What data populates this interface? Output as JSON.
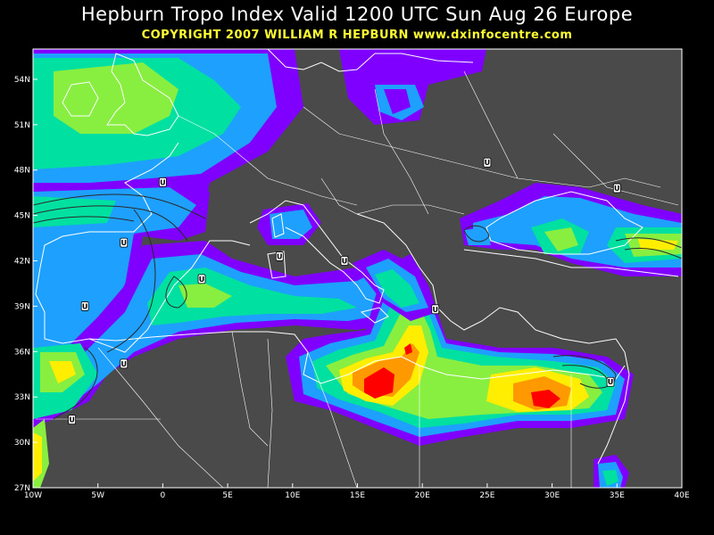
{
  "title": "Hepburn Tropo Index Valid 1200 UTC Sun Aug 26 Europe",
  "subtitle": "COPYRIGHT 2007   WILLIAM R HEPBURN   www.dxinfocentre.com",
  "map_data": {
    "type": "contour-map",
    "region": "Europe / Mediterranean",
    "lon_range": [
      -10,
      40
    ],
    "lat_range": [
      27,
      56
    ],
    "background_color": "#4a4a4a",
    "coastline_color": "#ffffff",
    "x_ticks": [
      "10W",
      "5W",
      "0",
      "5E",
      "10E",
      "15E",
      "20E",
      "25E",
      "30E",
      "35E",
      "40E"
    ],
    "y_ticks": [
      "54N",
      "51N",
      "48N",
      "45N",
      "42N",
      "39N",
      "36N",
      "33N",
      "30N",
      "27N"
    ],
    "index_colors": [
      "#7f00ff",
      "#1ea0ff",
      "#00e0a0",
      "#88ee40",
      "#ffee00",
      "#ff9900",
      "#ff0000"
    ],
    "index_levels": [
      "1",
      "2",
      "3",
      "4",
      "5",
      "6",
      "7"
    ],
    "markers": [
      {
        "label": "U",
        "lon": 0.0,
        "lat": 47.2
      },
      {
        "label": "U",
        "lon": -3.0,
        "lat": 43.2
      },
      {
        "label": "U",
        "lon": 3.0,
        "lat": 40.8
      },
      {
        "label": "U",
        "lon": -6.0,
        "lat": 39.0
      },
      {
        "label": "U",
        "lon": -3.0,
        "lat": 35.2
      },
      {
        "label": "U",
        "lon": -7.0,
        "lat": 31.5
      },
      {
        "label": "U",
        "lon": 9.0,
        "lat": 42.3
      },
      {
        "label": "U",
        "lon": 14.0,
        "lat": 42.0
      },
      {
        "label": "U",
        "lon": 21.0,
        "lat": 38.8
      },
      {
        "label": "U",
        "lon": 25.0,
        "lat": 48.5
      },
      {
        "label": "U",
        "lon": 35.0,
        "lat": 46.8
      },
      {
        "label": "U",
        "lon": 34.5,
        "lat": 34.0
      }
    ]
  }
}
